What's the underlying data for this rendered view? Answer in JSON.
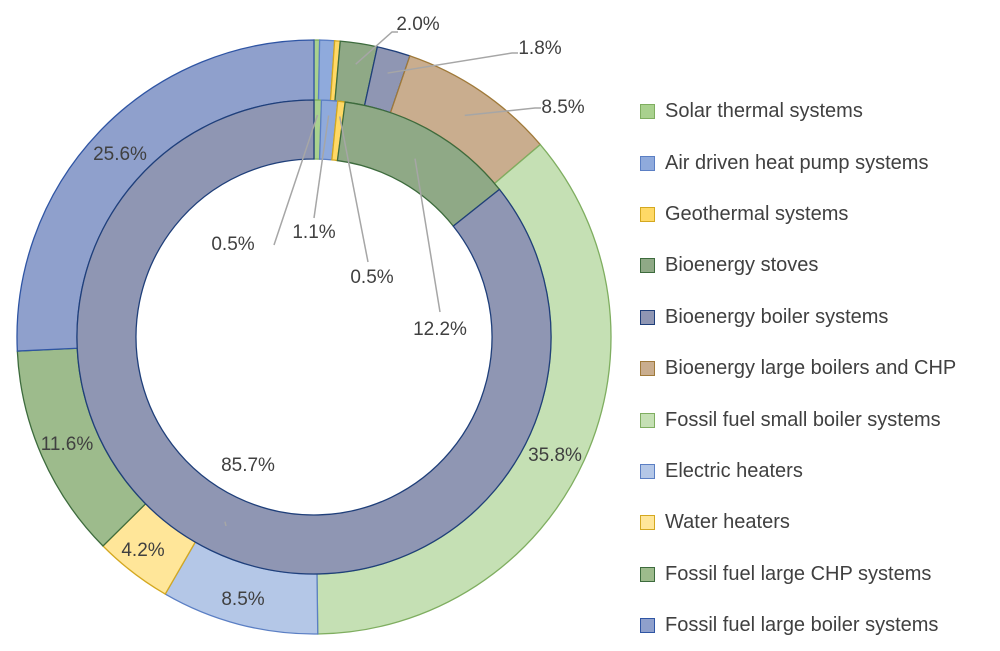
{
  "chart_data": {
    "type": "pie",
    "subtype": "nested-doughnut",
    "title": "",
    "legend_position": "right",
    "legend": [
      {
        "name": "Solar thermal systems",
        "color": "#a9d18e"
      },
      {
        "name": "Air driven heat pump systems",
        "color": "#8faadc"
      },
      {
        "name": "Geothermal systems",
        "color": "#ffd966"
      },
      {
        "name": "Bioenergy stoves",
        "color": "#8fa986"
      },
      {
        "name": "Bioenergy boiler systems",
        "color": "#8f96b3"
      },
      {
        "name": "Bioenergy large boilers and CHP",
        "color": "#c9ad8e"
      },
      {
        "name": "Fossil fuel small boiler systems",
        "color": "#c5e0b4"
      },
      {
        "name": "Electric heaters",
        "color": "#b4c7e7"
      },
      {
        "name": "Water heaters",
        "color": "#ffe699"
      },
      {
        "name": "Fossil fuel large CHP systems",
        "color": "#9dbb8c"
      },
      {
        "name": "Fossil fuel large boiler systems",
        "color": "#8fa0cc"
      }
    ],
    "outer_ring": [
      {
        "name": "Solar thermal systems",
        "value": 0.3,
        "label": ""
      },
      {
        "name": "Air driven heat pump systems",
        "value": 0.8,
        "label": ""
      },
      {
        "name": "Geothermal systems",
        "value": 0.3,
        "label": ""
      },
      {
        "name": "Bioenergy stoves",
        "value": 2.0,
        "label": "2.0%"
      },
      {
        "name": "Bioenergy boiler systems",
        "value": 1.8,
        "label": "1.8%"
      },
      {
        "name": "Bioenergy large boilers and CHP",
        "value": 8.5,
        "label": "8.5%"
      },
      {
        "name": "Fossil fuel small boiler systems",
        "value": 35.8,
        "label": "35.8%"
      },
      {
        "name": "Electric heaters",
        "value": 8.5,
        "label": "8.5%"
      },
      {
        "name": "Water heaters",
        "value": 4.2,
        "label": "4.2%"
      },
      {
        "name": "Fossil fuel large CHP systems",
        "value": 11.6,
        "label": "11.6%"
      },
      {
        "name": "Fossil fuel large boiler systems",
        "value": 25.6,
        "label": "25.6%"
      }
    ],
    "inner_ring": [
      {
        "value": 0.5,
        "label": "0.5%",
        "color": "#a9d18e",
        "stroke": "#7fae60"
      },
      {
        "value": 1.1,
        "label": "1.1%",
        "color": "#8faadc",
        "stroke": "#5b7fc4"
      },
      {
        "value": 0.5,
        "label": "0.5%",
        "color": "#ffd966",
        "stroke": "#d4a820"
      },
      {
        "value": 12.2,
        "label": "12.2%",
        "color": "#8fa986",
        "stroke": "#3d6b3d"
      },
      {
        "value": 85.7,
        "label": "85.7%",
        "color": "#8f96b3",
        "stroke": "#1f3f7a"
      }
    ]
  }
}
